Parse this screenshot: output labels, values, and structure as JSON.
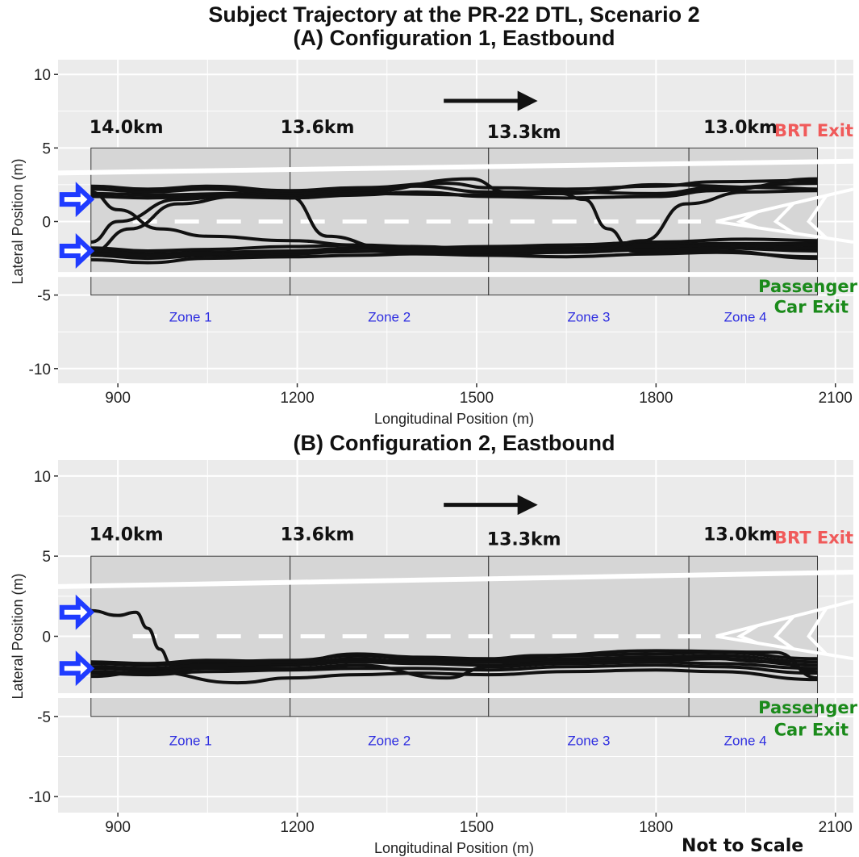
{
  "figure": {
    "title_line1": "Subject Trajectory at the PR-22 DTL, Scenario 2",
    "note": "Not to Scale",
    "colors": {
      "panel_bg": "#ebebeb",
      "zone_bg": "#d6d6d6",
      "trajectory": "#111111",
      "entry_arrow": "#1f3bff",
      "brt_exit": "#f05a5a",
      "car_exit": "#1a8a1a",
      "zone_label": "#2e2ee0"
    }
  },
  "chart_data": [
    {
      "type": "line",
      "title": "(A) Configuration 1, Eastbound",
      "xlabel": "Longitudinal Position (m)",
      "ylabel": "Lateral Position (m)",
      "xlim": [
        800,
        2130
      ],
      "ylim": [
        -11,
        11
      ],
      "xticks": [
        "900",
        "1200",
        "1500",
        "1800",
        "2100"
      ],
      "yticks": [
        "10",
        "5",
        "0",
        "-5",
        "-10"
      ],
      "grid": true,
      "zones": [
        {
          "label": "Zone 1",
          "x_start": 855,
          "x_end": 1188
        },
        {
          "label": "Zone 2",
          "x_start": 1188,
          "x_end": 1520
        },
        {
          "label": "Zone 3",
          "x_start": 1520,
          "x_end": 1855
        },
        {
          "label": "Zone 4",
          "x_start": 1855,
          "x_end": 2070
        }
      ],
      "zone_y_range": [
        -5,
        5
      ],
      "km_markers": [
        {
          "label": "14.0km",
          "x": 855
        },
        {
          "label": "13.6km",
          "x": 1188
        },
        {
          "label": "13.3km",
          "x": 1520
        },
        {
          "label": "13.0km",
          "x": 1855
        }
      ],
      "annotations": {
        "brt_exit": "BRT Exit",
        "car_exit_line1": "Passenger",
        "car_exit_line2": "Car Exit"
      },
      "lanes": {
        "upper_edge_start": 3.3,
        "upper_edge_end": 4.1,
        "lower_edge": -3.6,
        "centerline": 0
      },
      "series": [
        {
          "x": [
            855,
            950,
            1050,
            1188,
            1300,
            1400,
            1520,
            1650,
            1800,
            1900,
            2070
          ],
          "y": [
            2.2,
            2.0,
            2.2,
            1.9,
            2.2,
            2.4,
            2.0,
            2.0,
            1.9,
            2.3,
            2.6
          ]
        },
        {
          "x": [
            855,
            950,
            1050,
            1188,
            1300,
            1400,
            1520,
            1650,
            1800,
            1900,
            2070
          ],
          "y": [
            1.7,
            1.6,
            1.7,
            1.6,
            1.8,
            2.0,
            1.7,
            1.6,
            1.7,
            2.1,
            2.9
          ]
        },
        {
          "x": [
            855,
            950,
            1050,
            1188,
            1300,
            1450,
            1520,
            1650,
            1800,
            1900,
            2070
          ],
          "y": [
            2.4,
            2.2,
            2.4,
            2.1,
            2.3,
            2.6,
            2.3,
            2.2,
            2.4,
            2.7,
            2.8
          ]
        },
        {
          "x": [
            855,
            960,
            1100,
            1188,
            1300,
            1490,
            1550,
            1650,
            1800,
            2000,
            2070
          ],
          "y": [
            1.9,
            1.8,
            1.9,
            1.7,
            2.0,
            2.9,
            2.0,
            1.9,
            2.5,
            2.3,
            2.2
          ]
        },
        {
          "x": [
            855,
            950,
            1050,
            1188,
            1300,
            1400,
            1520,
            1650,
            1800,
            1900,
            2070
          ],
          "y": [
            -2.0,
            -2.2,
            -2.1,
            -2.0,
            -1.8,
            -1.9,
            -2.0,
            -1.9,
            -1.7,
            -1.5,
            -1.5
          ]
        },
        {
          "x": [
            855,
            950,
            1050,
            1188,
            1300,
            1400,
            1520,
            1650,
            1800,
            1900,
            2070
          ],
          "y": [
            -2.3,
            -2.5,
            -2.3,
            -2.2,
            -2.0,
            -2.1,
            -2.2,
            -2.1,
            -1.9,
            -1.8,
            -2.0
          ]
        },
        {
          "x": [
            855,
            950,
            1050,
            1188,
            1300,
            1400,
            1520,
            1650,
            1800,
            1900,
            2070
          ],
          "y": [
            -2.6,
            -2.8,
            -2.5,
            -2.4,
            -2.3,
            -2.2,
            -2.3,
            -2.4,
            -2.2,
            -2.1,
            -2.4
          ]
        },
        {
          "x": [
            855,
            950,
            1050,
            1188,
            1300,
            1400,
            1520,
            1650,
            1800,
            1950,
            2070
          ],
          "y": [
            -1.8,
            -2.0,
            -1.9,
            -1.7,
            -1.6,
            -1.8,
            -1.7,
            -1.6,
            -1.4,
            -1.2,
            -1.3
          ]
        },
        {
          "x": [
            855,
            900,
            970,
            1050,
            1188,
            1300,
            1400,
            1520,
            1650,
            1800,
            1900,
            2070
          ],
          "y": [
            2.0,
            0.8,
            -0.5,
            -1.0,
            -1.3,
            -1.6,
            -1.7,
            -1.9,
            -1.8,
            -1.6,
            -1.5,
            -1.6
          ]
        },
        {
          "x": [
            855,
            900,
            1000,
            1100,
            1188,
            1250,
            1350,
            1520,
            1650,
            1800,
            1900,
            2070
          ],
          "y": [
            -1.4,
            0.0,
            1.5,
            1.8,
            1.7,
            -1.0,
            -1.8,
            -2.0,
            -1.9,
            -1.7,
            -1.6,
            -1.8
          ]
        },
        {
          "x": [
            855,
            920,
            1000,
            1100,
            1188,
            1300,
            1520,
            1640,
            1680,
            1720,
            1760,
            1900,
            2070
          ],
          "y": [
            -2.1,
            -0.5,
            1.2,
            1.7,
            1.6,
            1.9,
            1.8,
            1.9,
            1.5,
            -0.5,
            -2.0,
            -2.0,
            -2.5
          ]
        },
        {
          "x": [
            855,
            950,
            1188,
            1400,
            1520,
            1700,
            1780,
            1850,
            1950,
            2070
          ],
          "y": [
            -2.2,
            -2.3,
            -2.1,
            -2.0,
            -2.0,
            -1.9,
            -1.3,
            1.2,
            2.0,
            2.1
          ]
        }
      ]
    },
    {
      "type": "line",
      "title": "(B) Configuration 2, Eastbound",
      "xlabel": "Longitudinal Position (m)",
      "ylabel": "Lateral Position (m)",
      "xlim": [
        800,
        2130
      ],
      "ylim": [
        -11,
        11
      ],
      "xticks": [
        "900",
        "1200",
        "1500",
        "1800",
        "2100"
      ],
      "yticks": [
        "10",
        "5",
        "0",
        "-5",
        "-10"
      ],
      "grid": true,
      "zones": [
        {
          "label": "Zone 1",
          "x_start": 855,
          "x_end": 1188
        },
        {
          "label": "Zone 2",
          "x_start": 1188,
          "x_end": 1520
        },
        {
          "label": "Zone 3",
          "x_start": 1520,
          "x_end": 1855
        },
        {
          "label": "Zone 4",
          "x_start": 1855,
          "x_end": 2070
        }
      ],
      "zone_y_range": [
        -5,
        5
      ],
      "km_markers": [
        {
          "label": "14.0km",
          "x": 855
        },
        {
          "label": "13.6km",
          "x": 1188
        },
        {
          "label": "13.3km",
          "x": 1520
        },
        {
          "label": "13.0km",
          "x": 1855
        }
      ],
      "annotations": {
        "brt_exit": "BRT Exit",
        "car_exit_line1": "Passenger",
        "car_exit_line2": "Car Exit"
      },
      "lanes": {
        "upper_edge_start": 3.1,
        "upper_edge_end": 4.0,
        "lower_edge": -3.7,
        "centerline": 0
      },
      "series": [
        {
          "x": [
            855,
            900,
            930,
            950,
            970,
            990,
            1050,
            1188,
            1300,
            1520,
            1700,
            1855,
            2000,
            2070
          ],
          "y": [
            1.6,
            1.3,
            1.5,
            0.5,
            -0.8,
            -1.8,
            -1.7,
            -1.6,
            -1.5,
            -1.6,
            -1.4,
            -1.3,
            -1.6,
            -2.2
          ]
        },
        {
          "x": [
            855,
            950,
            1050,
            1188,
            1300,
            1400,
            1520,
            1650,
            1800,
            1900,
            2070
          ],
          "y": [
            -1.7,
            -1.8,
            -1.6,
            -1.5,
            -1.2,
            -1.4,
            -1.5,
            -1.2,
            -1.1,
            -1.0,
            -1.4
          ]
        },
        {
          "x": [
            855,
            950,
            1050,
            1188,
            1300,
            1400,
            1520,
            1650,
            1800,
            1900,
            2070
          ],
          "y": [
            -2.0,
            -2.1,
            -1.9,
            -1.8,
            -1.6,
            -1.7,
            -1.8,
            -1.6,
            -1.5,
            -1.4,
            -1.8
          ]
        },
        {
          "x": [
            855,
            950,
            1050,
            1188,
            1300,
            1400,
            1520,
            1650,
            1800,
            1900,
            2070
          ],
          "y": [
            -2.3,
            -2.4,
            -2.2,
            -2.1,
            -2.0,
            -2.0,
            -2.1,
            -1.9,
            -1.8,
            -1.9,
            -2.3
          ]
        },
        {
          "x": [
            855,
            950,
            1100,
            1188,
            1300,
            1400,
            1520,
            1650,
            1800,
            1900,
            2070
          ],
          "y": [
            -2.5,
            -2.2,
            -2.9,
            -2.6,
            -2.4,
            -2.3,
            -2.4,
            -2.2,
            -2.1,
            -2.2,
            -2.7
          ]
        },
        {
          "x": [
            855,
            950,
            1050,
            1188,
            1300,
            1400,
            1520,
            1650,
            1800,
            1900,
            2070
          ],
          "y": [
            -1.9,
            -2.0,
            -1.8,
            -1.7,
            -1.4,
            -1.6,
            -1.6,
            -1.4,
            -1.3,
            -1.2,
            -1.6
          ]
        },
        {
          "x": [
            855,
            950,
            1050,
            1188,
            1300,
            1450,
            1520,
            1650,
            1800,
            1900,
            2070
          ],
          "y": [
            -2.2,
            -2.3,
            -2.0,
            -2.0,
            -1.8,
            -2.6,
            -1.9,
            -1.7,
            -1.6,
            -1.7,
            -2.0
          ]
        },
        {
          "x": [
            855,
            950,
            1050,
            1188,
            1300,
            1400,
            1520,
            1600,
            1800,
            2000,
            2070
          ],
          "y": [
            -1.6,
            -1.7,
            -1.5,
            -1.6,
            -1.1,
            -1.3,
            -1.4,
            -1.2,
            -0.9,
            -1.0,
            -2.6
          ]
        }
      ]
    }
  ]
}
